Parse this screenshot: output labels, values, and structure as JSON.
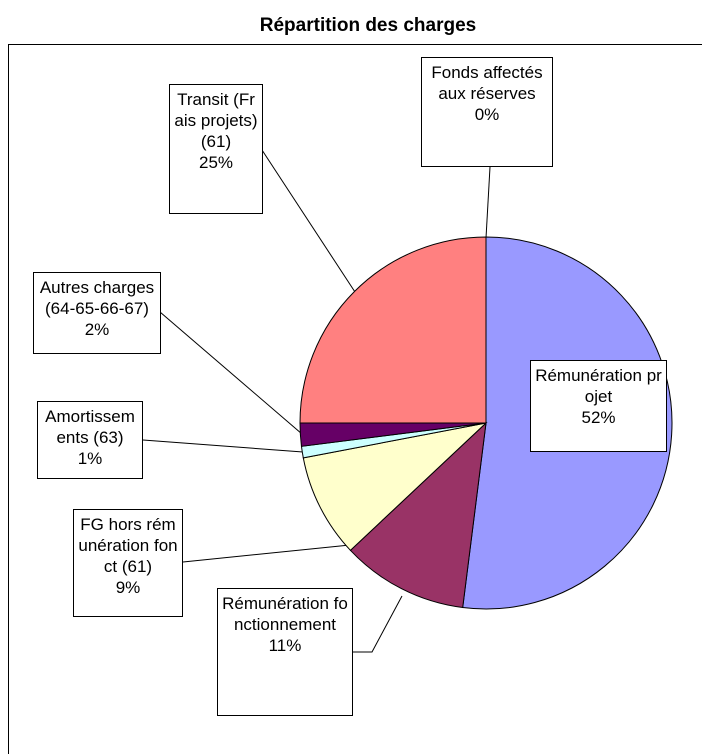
{
  "chart_data": {
    "type": "pie",
    "title": "Répartition des charges",
    "categories": [
      "Fonds affectés aux réserves",
      "Rémunération projet",
      "Rémunération fonctionnement",
      "FG hors rémunération fonct (61)",
      "Amortissements (63)",
      "Autres charges (64-65-66-67)",
      "Transit (Frais projets) (61)"
    ],
    "values": [
      0,
      52,
      11,
      9,
      1,
      2,
      25
    ],
    "value_labels": [
      "0%",
      "52%",
      "11%",
      "9%",
      "1%",
      "2%",
      "25%"
    ],
    "colors": [
      "#003366",
      "#9999ff",
      "#993366",
      "#ffffcc",
      "#ccffff",
      "#660066",
      "#ff8080"
    ]
  }
}
